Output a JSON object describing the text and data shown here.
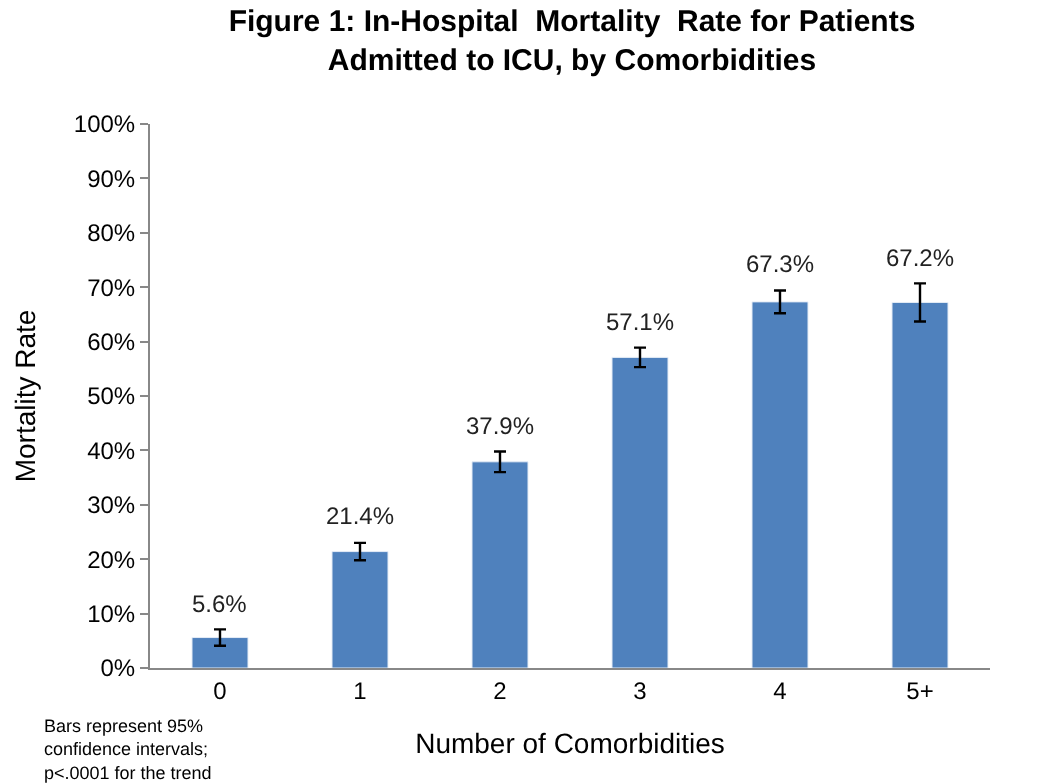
{
  "chart_data": {
    "type": "bar",
    "title": "Figure 1: In-Hospital  Mortality  Rate for Patients\nAdmitted to ICU, by Comorbidities",
    "xlabel": "Number of Comorbidities",
    "ylabel": "Mortality Rate",
    "categories": [
      "0",
      "1",
      "2",
      "3",
      "4",
      "5+"
    ],
    "values": [
      5.6,
      21.4,
      37.9,
      57.1,
      67.3,
      67.2
    ],
    "errors": [
      1.5,
      1.6,
      1.9,
      1.8,
      2.1,
      3.5
    ],
    "value_labels": [
      "5.6%",
      "21.4%",
      "37.9%",
      "57.1%",
      "67.3%",
      "67.2%"
    ],
    "color": "#4f81bd",
    "ylim": [
      0,
      100
    ],
    "yticks": [
      {
        "value": 0,
        "label": "0%"
      },
      {
        "value": 10,
        "label": "10%"
      },
      {
        "value": 20,
        "label": "20%"
      },
      {
        "value": 30,
        "label": "30%"
      },
      {
        "value": 40,
        "label": "40%"
      },
      {
        "value": 50,
        "label": "50%"
      },
      {
        "value": 60,
        "label": "60%"
      },
      {
        "value": 70,
        "label": "70%"
      },
      {
        "value": 80,
        "label": "80%"
      },
      {
        "value": 90,
        "label": "90%"
      },
      {
        "value": 100,
        "label": "100%"
      }
    ],
    "annotations": [
      "Bars represent 95%\nconfidence intervals;\np<.0001 for the trend"
    ],
    "legend": false
  }
}
